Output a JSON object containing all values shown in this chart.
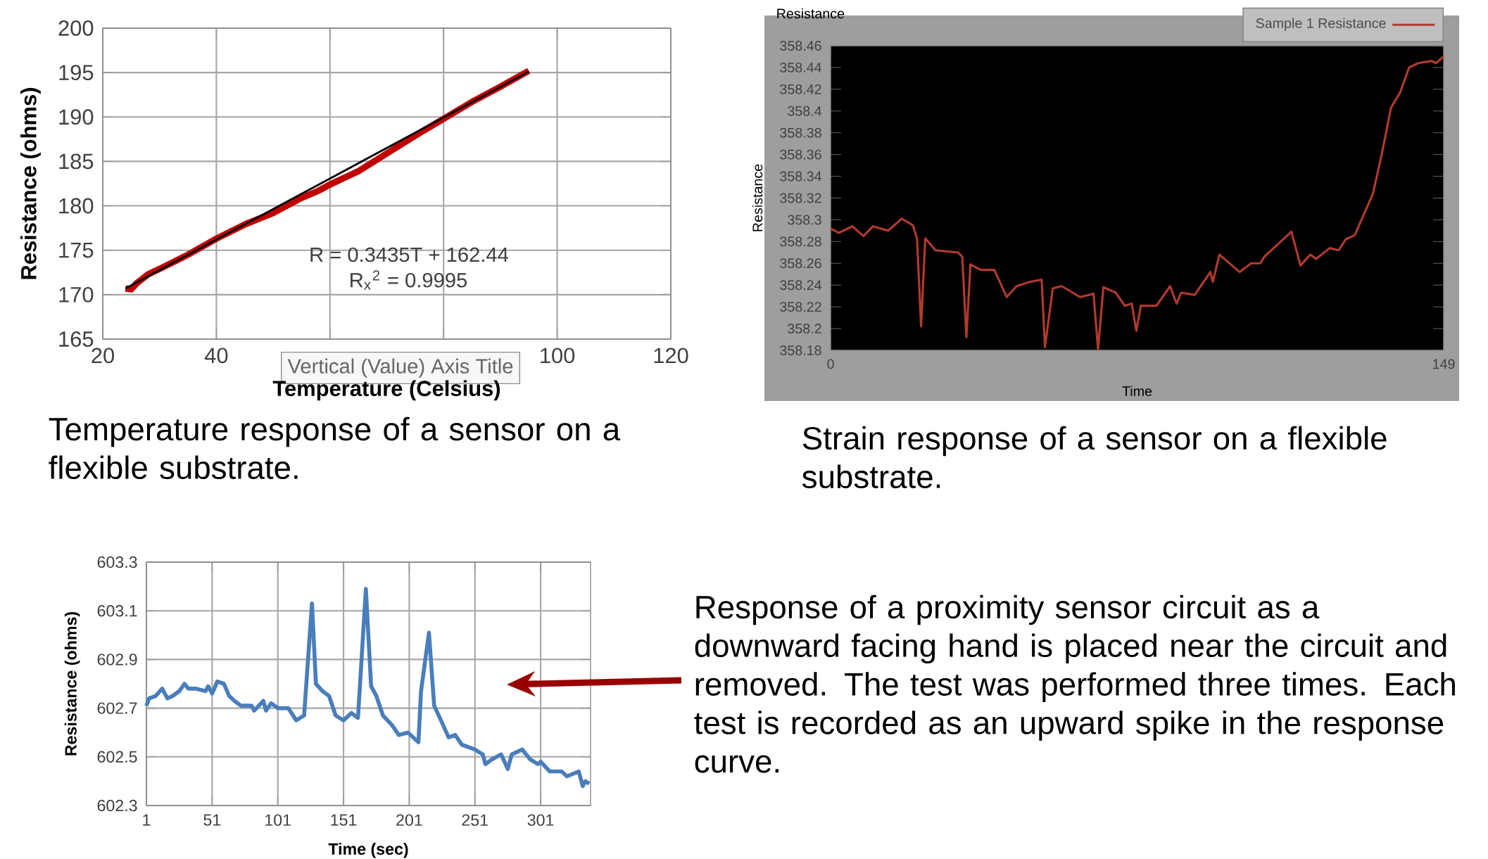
{
  "chart_data": [
    {
      "type": "line",
      "xlabel": "Temperature (Celsius)",
      "ylabel": "Resistance (ohms)",
      "xlim": [
        20,
        120
      ],
      "ylim": [
        165,
        200
      ],
      "xticks": [
        20,
        40,
        {
          "value": 60,
          "label": null
        },
        {
          "value": 80,
          "label": null
        },
        100,
        120
      ],
      "yticks": [
        165,
        170,
        175,
        180,
        185,
        190,
        195,
        200
      ],
      "grid": true,
      "series": [
        {
          "color": "#c00000",
          "x": [
            24,
            25,
            26,
            28,
            30,
            35,
            40,
            45,
            50,
            55,
            58,
            60,
            65,
            70,
            75,
            80,
            85,
            90,
            95
          ],
          "values": [
            170.7,
            170.6,
            171.3,
            172.3,
            172.9,
            174.5,
            176.3,
            177.9,
            179.2,
            180.9,
            181.7,
            182.4,
            183.9,
            185.9,
            187.9,
            189.8,
            191.7,
            193.4,
            195.2
          ]
        },
        {
          "color": "#000000",
          "x": [
            24,
            95
          ],
          "values": [
            170.7,
            195.1
          ]
        }
      ],
      "annotations": [
        "R = 0.3435T + 162.44",
        "R$_{x}$$^{2}$ = 0.9995",
        "Vertical (Value) Axis Title",
        "Temperature response of a sensor on a flexible substrate."
      ]
    },
    {
      "type": "line",
      "title": "Resistance",
      "xlabel": "Time",
      "ylabel": "Resistance",
      "xlim": [
        0,
        149
      ],
      "ylim": [
        358.18,
        358.46
      ],
      "xticks": [
        0,
        149
      ],
      "yticks": [
        358.18,
        358.2,
        358.22,
        358.24,
        358.26,
        358.28,
        358.3,
        358.32,
        358.34,
        358.36,
        358.38,
        358.4,
        358.42,
        358.44,
        358.46
      ],
      "legend": "top right",
      "series": [
        {
          "name": "Sample 1 Resistance",
          "color": "#b03a2e",
          "x": [
            0,
            2,
            5.3,
            8,
            10.3,
            14,
            17.3,
            20,
            21,
            22,
            23,
            25.5,
            31,
            32,
            33,
            34,
            36.5,
            39.8,
            42.8,
            45.2,
            48.5,
            51.3,
            52.1,
            54,
            56.2,
            60.6,
            63.9,
            65,
            66.3,
            69.3,
            71.5,
            73.2,
            74.3,
            75.4,
            79.2,
            82.5,
            84.1,
            85.2,
            88.5,
            92.3,
            92.9,
            94.5,
            99.4,
            102.2,
            104.4,
            105.4,
            112,
            114.2,
            116.6,
            118,
            121.3,
            123.5,
            125.2,
            127.4,
            131.8,
            134,
            136.2,
            138.4,
            140.6,
            142.8,
            146.1,
            147.1,
            149
          ],
          "values": [
            358.292,
            358.288,
            358.294,
            358.285,
            358.294,
            358.29,
            358.301,
            358.295,
            358.283,
            358.202,
            358.283,
            358.272,
            358.27,
            358.266,
            358.192,
            358.259,
            358.254,
            358.254,
            358.229,
            358.239,
            358.243,
            358.245,
            358.183,
            358.237,
            358.239,
            358.229,
            358.232,
            358.181,
            358.238,
            358.233,
            358.221,
            358.223,
            358.198,
            358.221,
            358.221,
            358.239,
            358.223,
            358.233,
            358.231,
            358.252,
            358.243,
            358.268,
            358.252,
            358.26,
            358.26,
            358.266,
            358.289,
            358.258,
            358.268,
            358.264,
            358.274,
            358.272,
            358.282,
            358.286,
            358.324,
            358.361,
            358.403,
            358.417,
            358.44,
            358.444,
            358.446,
            358.444,
            358.45
          ]
        }
      ],
      "annotations": [
        "Strain response of a sensor on a flexible substrate."
      ]
    },
    {
      "type": "line",
      "xlabel": "Time (sec)",
      "ylabel": "Resistance (ohms)",
      "xlim": [
        1,
        339
      ],
      "ylim": [
        602.3,
        603.3
      ],
      "xticks": [
        1,
        51,
        101,
        151,
        201,
        251,
        301
      ],
      "yticks": [
        602.3,
        602.5,
        602.7,
        602.9,
        603.1,
        603.3
      ],
      "grid": true,
      "series": [
        {
          "color": "#4a7ebb",
          "x": [
            1,
            3,
            8,
            13,
            17,
            21,
            26,
            30,
            33,
            39,
            46,
            48,
            51,
            55,
            60,
            64,
            68,
            73,
            81,
            83,
            90,
            92,
            96,
            101,
            109,
            115,
            121,
            127,
            130,
            135,
            140,
            145,
            151,
            157,
            162,
            168,
            172,
            176,
            181,
            188,
            193,
            200,
            208,
            210,
            216,
            220,
            226,
            231,
            236,
            241,
            251,
            257,
            259,
            264,
            271,
            276,
            279,
            287,
            293,
            299,
            301,
            308,
            317,
            321,
            330,
            333,
            335,
            338
          ],
          "values": [
            602.71,
            602.74,
            602.75,
            602.78,
            602.74,
            602.75,
            602.77,
            602.8,
            602.78,
            602.78,
            602.77,
            602.79,
            602.76,
            602.81,
            602.8,
            602.75,
            602.73,
            602.71,
            602.71,
            602.69,
            602.73,
            602.69,
            602.72,
            602.7,
            602.7,
            602.65,
            602.67,
            603.13,
            602.8,
            602.77,
            602.75,
            602.67,
            602.65,
            602.68,
            602.66,
            603.19,
            602.79,
            602.75,
            602.67,
            602.63,
            602.59,
            602.6,
            602.56,
            602.77,
            603.01,
            602.71,
            602.64,
            602.58,
            602.59,
            602.55,
            602.53,
            602.51,
            602.47,
            602.49,
            602.51,
            602.45,
            602.51,
            602.53,
            602.49,
            602.47,
            602.48,
            602.44,
            602.44,
            602.42,
            602.44,
            602.38,
            602.4,
            602.39
          ]
        }
      ],
      "annotations": [
        "Response of a proximity sensor circuit as a downward facing hand is placed near the circuit and removed. The test was performed three times. Each test is recorded as an upward spike in the response curve."
      ]
    }
  ]
}
